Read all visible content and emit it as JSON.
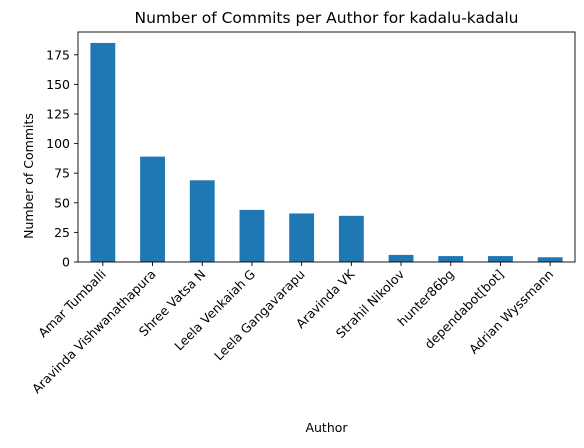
{
  "chart_data": {
    "type": "bar",
    "title": "Number of Commits per Author for kadalu-kadalu",
    "xlabel": "Author",
    "ylabel": "Number of Commits",
    "categories": [
      "Amar Tumballi",
      "Aravinda Vishwanathapura",
      "Shree Vatsa N",
      "Leela Venkaiah G",
      "Leela Gangavarapu",
      "Aravinda VK",
      "Strahil Nikolov",
      "hunter86bg",
      "dependabot[bot]",
      "Adrian Wyssmann"
    ],
    "values": [
      185,
      89,
      69,
      44,
      41,
      39,
      6,
      5,
      5,
      4
    ],
    "ylim": [
      0,
      194.25
    ],
    "yticks": [
      0,
      25,
      50,
      75,
      100,
      125,
      150,
      175
    ],
    "grid": false,
    "legend": "none",
    "bar_color": "#1f77b4"
  }
}
